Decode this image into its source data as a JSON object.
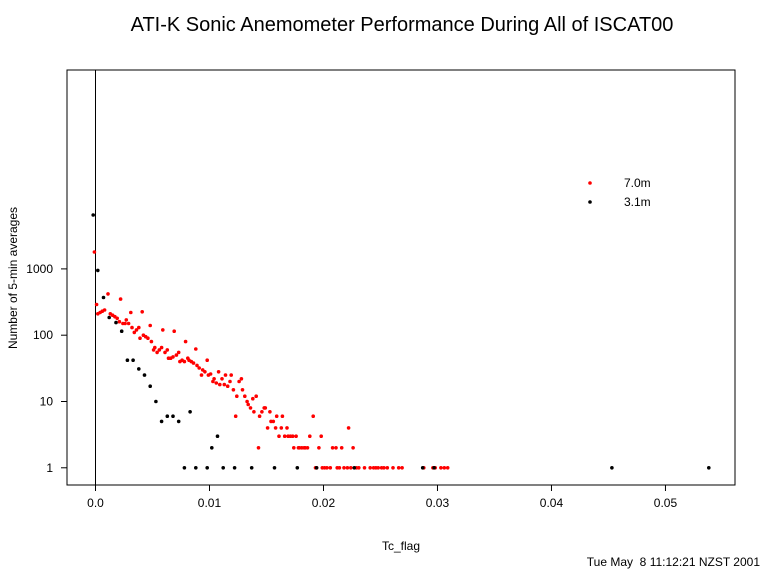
{
  "chart_data": {
    "type": "scatter",
    "title": "ATI-K Sonic Anemometer Performance During All of ISCAT00",
    "xlabel": "Tc_flag",
    "ylabel": "Number of 5-min averages",
    "y_scale": "log",
    "xlim": [
      -0.0025,
      0.0561
    ],
    "ylim": [
      0.55,
      1000000
    ],
    "x_ticks": [
      0,
      0.01,
      0.02,
      0.03,
      0.04,
      0.05
    ],
    "x_tick_labels": [
      "0.0",
      "0.01",
      "0.02",
      "0.03",
      "0.04",
      "0.05"
    ],
    "y_ticks": [
      1,
      10,
      100,
      1000
    ],
    "y_tick_labels": [
      "1",
      "10",
      "100",
      "1000"
    ],
    "grid": false,
    "legend_position": "top-right",
    "vertical_line_x": 0,
    "series": [
      {
        "name": "7.0m",
        "color": "#ff0000",
        "points": [
          [
            -0.0001,
            1800
          ],
          [
            0.0001,
            290
          ],
          [
            0.0002,
            210
          ],
          [
            0.0004,
            220
          ],
          [
            0.0006,
            230
          ],
          [
            0.0008,
            240
          ],
          [
            0.0011,
            420
          ],
          [
            0.0013,
            210
          ],
          [
            0.0015,
            200
          ],
          [
            0.0017,
            190
          ],
          [
            0.0019,
            180
          ],
          [
            0.0021,
            160
          ],
          [
            0.0022,
            350
          ],
          [
            0.0024,
            150
          ],
          [
            0.0026,
            150
          ],
          [
            0.0027,
            170
          ],
          [
            0.0029,
            150
          ],
          [
            0.0031,
            220
          ],
          [
            0.0032,
            130
          ],
          [
            0.0034,
            110
          ],
          [
            0.0036,
            120
          ],
          [
            0.0038,
            130
          ],
          [
            0.0039,
            90
          ],
          [
            0.0041,
            225
          ],
          [
            0.0042,
            100
          ],
          [
            0.0044,
            95
          ],
          [
            0.0046,
            90
          ],
          [
            0.0048,
            140
          ],
          [
            0.0049,
            80
          ],
          [
            0.0051,
            60
          ],
          [
            0.0052,
            65
          ],
          [
            0.0054,
            55
          ],
          [
            0.0056,
            60
          ],
          [
            0.0058,
            65
          ],
          [
            0.0059,
            120
          ],
          [
            0.0061,
            55
          ],
          [
            0.0063,
            60
          ],
          [
            0.0064,
            45
          ],
          [
            0.0066,
            45
          ],
          [
            0.0068,
            47
          ],
          [
            0.0069,
            115
          ],
          [
            0.0071,
            50
          ],
          [
            0.0073,
            55
          ],
          [
            0.0074,
            40
          ],
          [
            0.0076,
            42
          ],
          [
            0.0078,
            40
          ],
          [
            0.0079,
            80
          ],
          [
            0.0081,
            45
          ],
          [
            0.0082,
            42
          ],
          [
            0.0084,
            40
          ],
          [
            0.0086,
            38
          ],
          [
            0.0088,
            62
          ],
          [
            0.0089,
            35
          ],
          [
            0.0091,
            32
          ],
          [
            0.0093,
            25
          ],
          [
            0.0094,
            30
          ],
          [
            0.0096,
            28
          ],
          [
            0.0098,
            42
          ],
          [
            0.0099,
            25
          ],
          [
            0.0101,
            26
          ],
          [
            0.0103,
            20
          ],
          [
            0.0104,
            22
          ],
          [
            0.0106,
            19
          ],
          [
            0.0108,
            28
          ],
          [
            0.0109,
            18
          ],
          [
            0.0111,
            22
          ],
          [
            0.0113,
            18
          ],
          [
            0.0114,
            25
          ],
          [
            0.0116,
            17
          ],
          [
            0.0118,
            20
          ],
          [
            0.0119,
            25
          ],
          [
            0.0121,
            15
          ],
          [
            0.0123,
            6
          ],
          [
            0.0124,
            12
          ],
          [
            0.0126,
            20
          ],
          [
            0.0128,
            22
          ],
          [
            0.0129,
            15
          ],
          [
            0.0131,
            12
          ],
          [
            0.0133,
            10
          ],
          [
            0.0134,
            9
          ],
          [
            0.0136,
            8
          ],
          [
            0.0138,
            11
          ],
          [
            0.0139,
            7
          ],
          [
            0.0141,
            12
          ],
          [
            0.0143,
            2
          ],
          [
            0.0144,
            6
          ],
          [
            0.0146,
            7
          ],
          [
            0.0148,
            8
          ],
          [
            0.0149,
            8
          ],
          [
            0.0151,
            4
          ],
          [
            0.0153,
            7
          ],
          [
            0.0154,
            5
          ],
          [
            0.0156,
            5
          ],
          [
            0.0158,
            4
          ],
          [
            0.0159,
            6
          ],
          [
            0.0161,
            3
          ],
          [
            0.0163,
            4
          ],
          [
            0.0164,
            6
          ],
          [
            0.0166,
            3
          ],
          [
            0.0168,
            4
          ],
          [
            0.0169,
            3
          ],
          [
            0.0171,
            3
          ],
          [
            0.0173,
            3
          ],
          [
            0.0174,
            2
          ],
          [
            0.0176,
            3
          ],
          [
            0.0178,
            2
          ],
          [
            0.0179,
            2
          ],
          [
            0.0181,
            2
          ],
          [
            0.0183,
            2
          ],
          [
            0.0184,
            2
          ],
          [
            0.0186,
            2
          ],
          [
            0.0188,
            3
          ],
          [
            0.0191,
            6
          ],
          [
            0.0193,
            1
          ],
          [
            0.0194,
            1
          ],
          [
            0.0196,
            2
          ],
          [
            0.0198,
            3
          ],
          [
            0.0199,
            1
          ],
          [
            0.0201,
            1
          ],
          [
            0.0203,
            1
          ],
          [
            0.0206,
            1
          ],
          [
            0.0208,
            2
          ],
          [
            0.0211,
            2
          ],
          [
            0.0212,
            1
          ],
          [
            0.0214,
            1
          ],
          [
            0.0216,
            2
          ],
          [
            0.0218,
            1
          ],
          [
            0.0221,
            1
          ],
          [
            0.0222,
            4
          ],
          [
            0.0224,
            1
          ],
          [
            0.0226,
            2
          ],
          [
            0.0229,
            1
          ],
          [
            0.0231,
            1
          ],
          [
            0.0236,
            1
          ],
          [
            0.0241,
            1
          ],
          [
            0.0244,
            1
          ],
          [
            0.0246,
            1
          ],
          [
            0.0248,
            1
          ],
          [
            0.0251,
            1
          ],
          [
            0.0253,
            1
          ],
          [
            0.0256,
            1
          ],
          [
            0.0261,
            1
          ],
          [
            0.0266,
            1
          ],
          [
            0.0269,
            1
          ],
          [
            0.0288,
            1
          ],
          [
            0.0296,
            1
          ],
          [
            0.0298,
            1
          ],
          [
            0.0303,
            1
          ],
          [
            0.0306,
            1
          ],
          [
            0.0309,
            1
          ]
        ]
      },
      {
        "name": "3.1m",
        "color": "#000000",
        "points": [
          [
            -0.0002,
            6500
          ],
          [
            0.0002,
            950
          ],
          [
            0.0007,
            370
          ],
          [
            0.0012,
            185
          ],
          [
            0.0018,
            155
          ],
          [
            0.0023,
            115
          ],
          [
            0.0028,
            42
          ],
          [
            0.0033,
            42
          ],
          [
            0.0038,
            31
          ],
          [
            0.0043,
            25
          ],
          [
            0.0048,
            17
          ],
          [
            0.0053,
            10
          ],
          [
            0.0058,
            5
          ],
          [
            0.0063,
            6
          ],
          [
            0.0068,
            6
          ],
          [
            0.0073,
            5
          ],
          [
            0.0078,
            1
          ],
          [
            0.0083,
            7
          ],
          [
            0.0088,
            1
          ],
          [
            0.0098,
            1
          ],
          [
            0.0102,
            2
          ],
          [
            0.0107,
            3
          ],
          [
            0.0112,
            1
          ],
          [
            0.0122,
            1
          ],
          [
            0.0137,
            1
          ],
          [
            0.0157,
            1
          ],
          [
            0.0177,
            1
          ],
          [
            0.0194,
            1
          ],
          [
            0.0227,
            1
          ],
          [
            0.0287,
            1
          ],
          [
            0.0297,
            1
          ],
          [
            0.0453,
            1
          ],
          [
            0.0538,
            1
          ]
        ]
      }
    ],
    "timestamp": "Tue May  8 11:12:21 NZST 2001"
  }
}
